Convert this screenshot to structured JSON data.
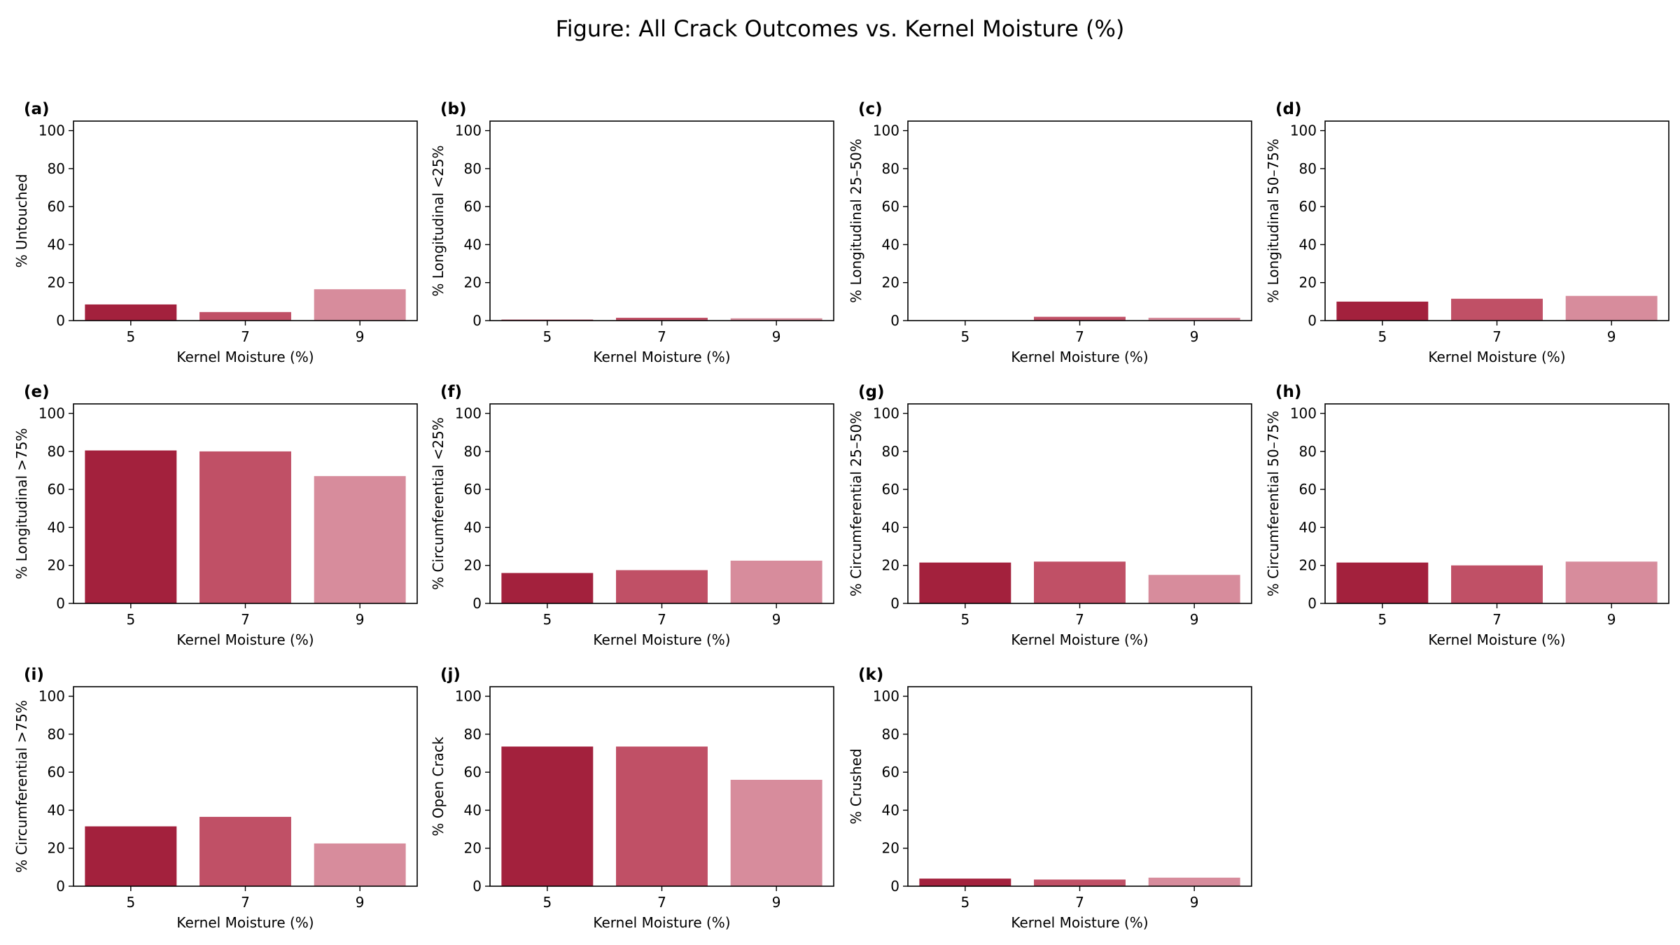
{
  "figure": {
    "title": "Figure: All Crack Outcomes vs. Kernel Moisture (%)"
  },
  "colors": {
    "bar_colors": [
      "#a3213d",
      "#c05066",
      "#d78c9c"
    ],
    "axis": "#000000",
    "background": "#ffffff"
  },
  "chart_data": [
    {
      "type": "bar",
      "tag": "(a)",
      "xlabel": "Kernel Moisture (%)",
      "ylabel": "% Untouched",
      "categories": [
        "5",
        "7",
        "9"
      ],
      "values": [
        8.5,
        4.5,
        16.5
      ],
      "ylim": [
        0,
        105
      ],
      "yticks": [
        "0",
        "20",
        "40",
        "60",
        "80",
        "100"
      ],
      "grid": false,
      "legend": "none"
    },
    {
      "type": "bar",
      "tag": "(b)",
      "xlabel": "Kernel Moisture (%)",
      "ylabel": "% Longitudinal <25%",
      "categories": [
        "5",
        "7",
        "9"
      ],
      "values": [
        0.5,
        1.5,
        1.2
      ],
      "ylim": [
        0,
        105
      ],
      "yticks": [
        "0",
        "20",
        "40",
        "60",
        "80",
        "100"
      ],
      "grid": false,
      "legend": "none"
    },
    {
      "type": "bar",
      "tag": "(c)",
      "xlabel": "Kernel Moisture (%)",
      "ylabel": "% Longitudinal 25–50%",
      "categories": [
        "5",
        "7",
        "9"
      ],
      "values": [
        0.0,
        2.0,
        1.5
      ],
      "ylim": [
        0,
        105
      ],
      "yticks": [
        "0",
        "20",
        "40",
        "60",
        "80",
        "100"
      ],
      "grid": false,
      "legend": "none"
    },
    {
      "type": "bar",
      "tag": "(d)",
      "xlabel": "Kernel Moisture (%)",
      "ylabel": "% Longitudinal 50–75%",
      "categories": [
        "5",
        "7",
        "9"
      ],
      "values": [
        10.0,
        11.5,
        13.0
      ],
      "ylim": [
        0,
        105
      ],
      "yticks": [
        "0",
        "20",
        "40",
        "60",
        "80",
        "100"
      ],
      "grid": false,
      "legend": "none"
    },
    {
      "type": "bar",
      "tag": "(e)",
      "xlabel": "Kernel Moisture (%)",
      "ylabel": "% Longitudinal >75%",
      "categories": [
        "5",
        "7",
        "9"
      ],
      "values": [
        80.5,
        80.0,
        67.0
      ],
      "ylim": [
        0,
        105
      ],
      "yticks": [
        "0",
        "20",
        "40",
        "60",
        "80",
        "100"
      ],
      "grid": false,
      "legend": "none"
    },
    {
      "type": "bar",
      "tag": "(f)",
      "xlabel": "Kernel Moisture (%)",
      "ylabel": "% Circumferential <25%",
      "categories": [
        "5",
        "7",
        "9"
      ],
      "values": [
        16.0,
        17.5,
        22.5
      ],
      "ylim": [
        0,
        105
      ],
      "yticks": [
        "0",
        "20",
        "40",
        "60",
        "80",
        "100"
      ],
      "grid": false,
      "legend": "none"
    },
    {
      "type": "bar",
      "tag": "(g)",
      "xlabel": "Kernel Moisture (%)",
      "ylabel": "% Circumferential 25–50%",
      "categories": [
        "5",
        "7",
        "9"
      ],
      "values": [
        21.5,
        22.0,
        15.0
      ],
      "ylim": [
        0,
        105
      ],
      "yticks": [
        "0",
        "20",
        "40",
        "60",
        "80",
        "100"
      ],
      "grid": false,
      "legend": "none"
    },
    {
      "type": "bar",
      "tag": "(h)",
      "xlabel": "Kernel Moisture (%)",
      "ylabel": "% Circumferential 50–75%",
      "categories": [
        "5",
        "7",
        "9"
      ],
      "values": [
        21.5,
        20.0,
        22.0
      ],
      "ylim": [
        0,
        105
      ],
      "yticks": [
        "0",
        "20",
        "40",
        "60",
        "80",
        "100"
      ],
      "grid": false,
      "legend": "none"
    },
    {
      "type": "bar",
      "tag": "(i)",
      "xlabel": "Kernel Moisture (%)",
      "ylabel": "% Circumferential >75%",
      "categories": [
        "5",
        "7",
        "9"
      ],
      "values": [
        31.5,
        36.5,
        22.5
      ],
      "ylim": [
        0,
        105
      ],
      "yticks": [
        "0",
        "20",
        "40",
        "60",
        "80",
        "100"
      ],
      "grid": false,
      "legend": "none"
    },
    {
      "type": "bar",
      "tag": "(j)",
      "xlabel": "Kernel Moisture (%)",
      "ylabel": "% Open Crack",
      "categories": [
        "5",
        "7",
        "9"
      ],
      "values": [
        73.5,
        73.5,
        56.0
      ],
      "ylim": [
        0,
        105
      ],
      "yticks": [
        "0",
        "20",
        "40",
        "60",
        "80",
        "100"
      ],
      "grid": false,
      "legend": "none"
    },
    {
      "type": "bar",
      "tag": "(k)",
      "xlabel": "Kernel Moisture (%)",
      "ylabel": "% Crushed",
      "categories": [
        "5",
        "7",
        "9"
      ],
      "values": [
        4.0,
        3.5,
        4.5
      ],
      "ylim": [
        0,
        105
      ],
      "yticks": [
        "0",
        "20",
        "40",
        "60",
        "80",
        "100"
      ],
      "grid": false,
      "legend": "none"
    }
  ]
}
